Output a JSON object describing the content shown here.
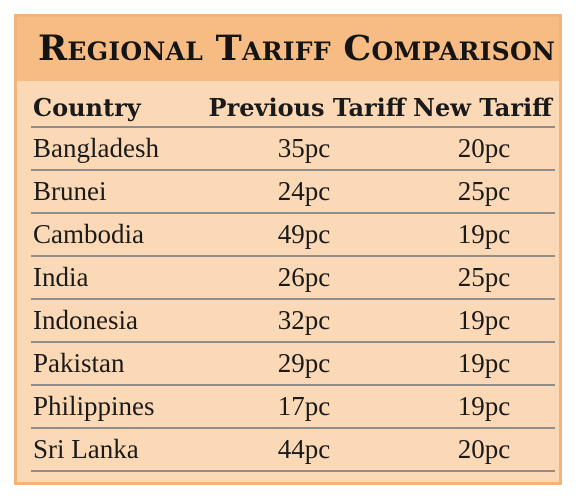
{
  "title": "Regional Tariff Comparison",
  "columns": [
    "Country",
    "Previous Tariff",
    "New Tariff"
  ],
  "rows": [
    [
      "Bangladesh",
      "35pc",
      "20pc"
    ],
    [
      "Brunei",
      "24pc",
      "25pc"
    ],
    [
      "Cambodia",
      "49pc",
      "19pc"
    ],
    [
      "India",
      "26pc",
      "25pc"
    ],
    [
      "Indonesia",
      "32pc",
      "19pc"
    ],
    [
      "Pakistan",
      "29pc",
      "19pc"
    ],
    [
      "Philippines",
      "17pc",
      "19pc"
    ],
    [
      "Sri Lanka",
      "44pc",
      "20pc"
    ]
  ],
  "colors": {
    "card_background": "#fcd9b6",
    "title_bar": "#f6bc83",
    "border": "#f0b57d",
    "row_rule": "#8f8c8a"
  }
}
